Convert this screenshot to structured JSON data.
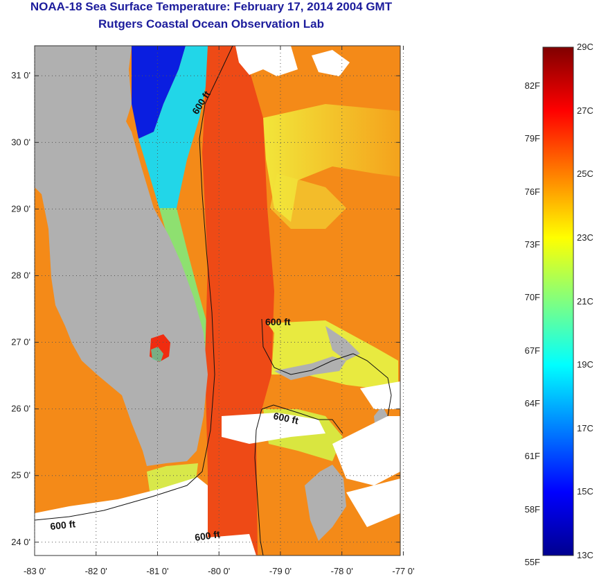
{
  "header": {
    "title": "NOAA-18 Sea Surface Temperature:  February 17, 2014 2004 GMT",
    "subtitle": "Rutgers Coastal Ocean Observation Lab"
  },
  "map": {
    "lat_labels": [
      "31 0'",
      "30 0'",
      "29 0'",
      "28 0'",
      "27 0'",
      "26 0'",
      "25 0'",
      "24 0'"
    ],
    "lon_labels": [
      "-83 0'",
      "-82 0'",
      "-81 0'",
      "-80 0'",
      "-79 0'",
      "-78 0'",
      "-77 0'"
    ],
    "lat_range": [
      23.8,
      31.45
    ],
    "lon_range": [
      -83.0,
      -77.05
    ],
    "isobath_label": "600 ft",
    "colors": {
      "land": "#b0b0b0",
      "cloud": "#ffffff",
      "gulf_stream": "#ee4a16",
      "warm": "#f48a18",
      "shelf_yellow": "#f2e63a",
      "cold": "#0a1ee0"
    }
  },
  "colorbar": {
    "range_c": [
      13,
      29
    ],
    "celsius_labels": [
      "29C",
      "27C",
      "25C",
      "23C",
      "21C",
      "19C",
      "17C",
      "15C",
      "13C"
    ],
    "fahrenheit_labels": [
      "82F",
      "79F",
      "76F",
      "73F",
      "70F",
      "67F",
      "64F",
      "61F",
      "58F",
      "55F"
    ],
    "colors": [
      "#00008f",
      "#0000ff",
      "#0080ff",
      "#00ffff",
      "#80ff80",
      "#ffff00",
      "#ff8000",
      "#ff0000",
      "#800000"
    ]
  }
}
